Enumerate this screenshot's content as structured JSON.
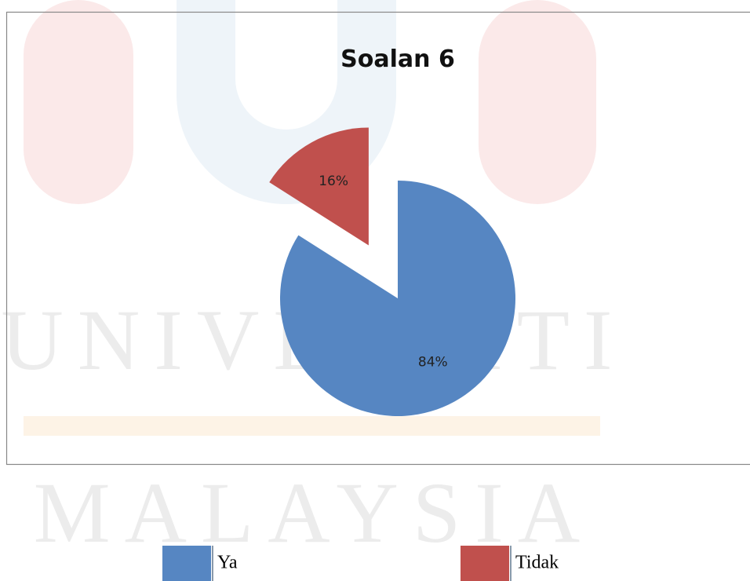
{
  "chart_data": {
    "type": "pie",
    "title": "Soalan 6",
    "categories": [
      "Ya",
      "Tidak"
    ],
    "values": [
      84,
      16
    ],
    "value_labels": [
      "84%",
      "16%"
    ],
    "colors": [
      "#5686c2",
      "#c0504d"
    ],
    "exploded": [
      false,
      true
    ],
    "legend": "bottom"
  },
  "watermark": [
    "UNIVERSITI",
    "MALAYSIA"
  ]
}
